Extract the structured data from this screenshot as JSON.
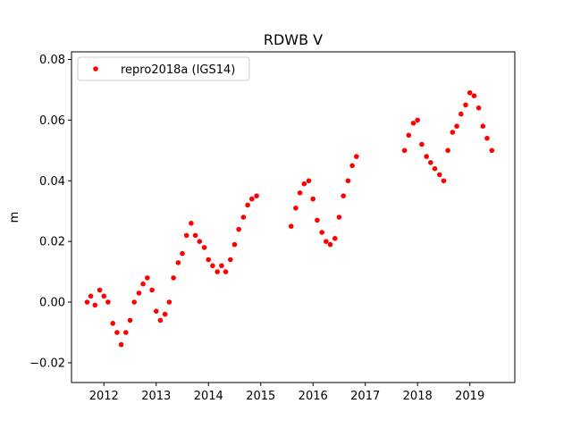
{
  "chart_data": {
    "type": "scatter",
    "title": "RDWB V",
    "xlabel": "",
    "ylabel": "m",
    "xlim": [
      2011.38,
      2019.86
    ],
    "ylim": [
      -0.0265,
      0.0825
    ],
    "x_ticks": [
      2012,
      2013,
      2014,
      2015,
      2016,
      2017,
      2018,
      2019
    ],
    "x_tick_labels": [
      "2012",
      "2013",
      "2014",
      "2015",
      "2016",
      "2017",
      "2018",
      "2019"
    ],
    "y_ticks": [
      -0.02,
      0.0,
      0.02,
      0.04,
      0.06,
      0.08
    ],
    "y_tick_labels": [
      "−0.02",
      "0.00",
      "0.02",
      "0.04",
      "0.06",
      "0.08"
    ],
    "grid": false,
    "legend_position": "top-left",
    "colors": {
      "series": "#ff0000",
      "axes": "#000000",
      "background": "#ffffff"
    },
    "series": [
      {
        "name": "repro2018a (IGS14)",
        "marker": "circle",
        "color": "#ff0000",
        "x": [
          2011.68,
          2011.75,
          2011.83,
          2011.92,
          2012.0,
          2012.08,
          2012.17,
          2012.25,
          2012.33,
          2012.42,
          2012.5,
          2012.58,
          2012.67,
          2012.75,
          2012.83,
          2012.92,
          2013.0,
          2013.08,
          2013.17,
          2013.25,
          2013.33,
          2013.42,
          2013.5,
          2013.58,
          2013.67,
          2013.75,
          2013.83,
          2013.92,
          2014.0,
          2014.08,
          2014.17,
          2014.25,
          2014.33,
          2014.42,
          2014.5,
          2014.58,
          2014.67,
          2014.75,
          2014.83,
          2014.92,
          2015.58,
          2015.67,
          2015.75,
          2015.83,
          2015.92,
          2016.0,
          2016.08,
          2016.17,
          2016.25,
          2016.33,
          2016.42,
          2016.5,
          2016.58,
          2016.67,
          2016.75,
          2016.83,
          2017.75,
          2017.83,
          2017.92,
          2018.0,
          2018.08,
          2018.17,
          2018.25,
          2018.33,
          2018.42,
          2018.5,
          2018.58,
          2018.67,
          2018.75,
          2018.83,
          2018.92,
          2019.0,
          2019.08,
          2019.17,
          2019.25,
          2019.33,
          2019.42
        ],
        "y": [
          0.0,
          0.002,
          -0.001,
          0.004,
          0.002,
          0.0,
          -0.007,
          -0.01,
          -0.014,
          -0.01,
          -0.006,
          0.0,
          0.003,
          0.006,
          0.008,
          0.004,
          -0.003,
          -0.006,
          -0.004,
          0.0,
          0.008,
          0.013,
          0.016,
          0.022,
          0.026,
          0.022,
          0.02,
          0.018,
          0.014,
          0.012,
          0.01,
          0.012,
          0.01,
          0.014,
          0.019,
          0.024,
          0.028,
          0.032,
          0.034,
          0.035,
          0.025,
          0.031,
          0.036,
          0.039,
          0.04,
          0.034,
          0.027,
          0.023,
          0.02,
          0.019,
          0.021,
          0.028,
          0.035,
          0.04,
          0.045,
          0.048,
          0.05,
          0.055,
          0.059,
          0.06,
          0.052,
          0.048,
          0.046,
          0.044,
          0.042,
          0.04,
          0.05,
          0.056,
          0.058,
          0.062,
          0.065,
          0.069,
          0.068,
          0.064,
          0.058,
          0.054,
          0.05
        ]
      }
    ]
  }
}
